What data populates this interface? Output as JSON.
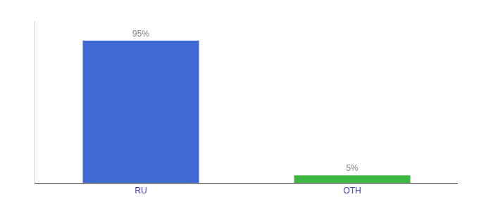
{
  "chart_data": {
    "type": "bar",
    "categories": [
      "RU",
      "OTH"
    ],
    "values": [
      95,
      5
    ],
    "value_labels": [
      "95%",
      "5%"
    ],
    "colors": [
      "#4169d4",
      "#3cb843"
    ],
    "ylim": [
      0,
      108
    ],
    "data_labels": true,
    "tick_labels": "x",
    "grid": false
  }
}
